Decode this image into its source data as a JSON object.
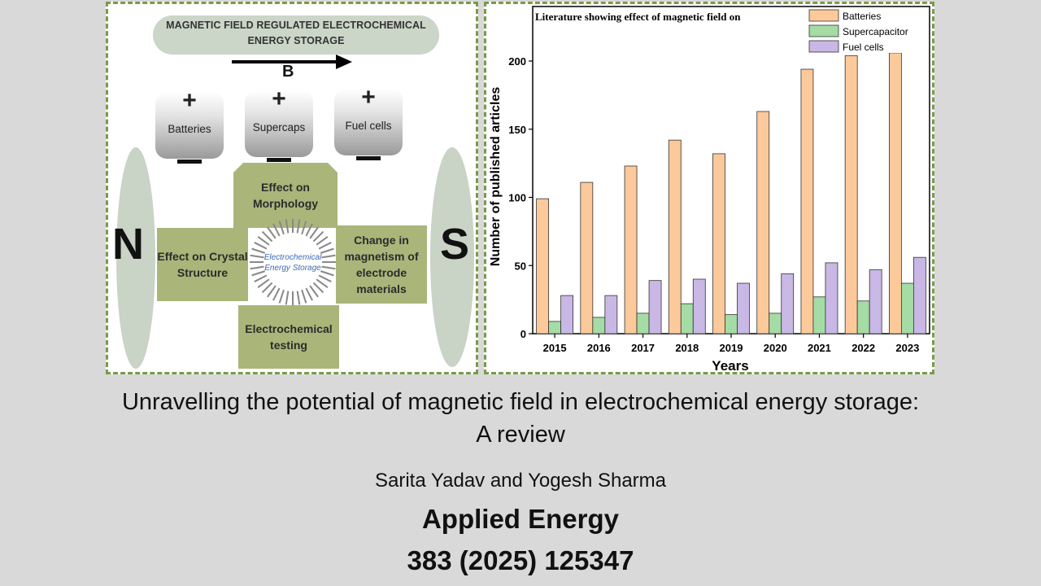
{
  "diagram": {
    "banner": "MAGNETIC FIELD REGULATED ELECTROCHEMICAL ENERGY STORAGE",
    "field_label": "B",
    "plus": "+",
    "cells": [
      "Batteries",
      "Supercaps",
      "Fuel cells"
    ],
    "north": "N",
    "south": "S",
    "effects": {
      "morphology": "Effect on Morphology",
      "crystal": "Effect on Crystal Structure",
      "magnetism": "Change in magnetism of electrode materials",
      "testing": "Electrochemical testing"
    },
    "center": "Electrochemical Energy Storage"
  },
  "chart_data": {
    "type": "bar",
    "title": "Literature showing effect of magnetic field on",
    "xlabel": "Years",
    "ylabel": "Number of published articles",
    "categories": [
      "2015",
      "2016",
      "2017",
      "2018",
      "2019",
      "2020",
      "2021",
      "2022",
      "2023"
    ],
    "ylim": [
      0,
      240
    ],
    "yticks": [
      0,
      50,
      100,
      150,
      200
    ],
    "legend_position": "top-right",
    "series": [
      {
        "name": "Batteries",
        "color": "#fcc99b",
        "values": [
          99,
          111,
          123,
          142,
          132,
          163,
          194,
          204,
          206
        ]
      },
      {
        "name": "Supercapacitor",
        "color": "#a5dba5",
        "values": [
          9,
          12,
          15,
          22,
          14,
          15,
          27,
          24,
          37
        ]
      },
      {
        "name": "Fuel cells",
        "color": "#c9b8e6",
        "values": [
          28,
          28,
          39,
          40,
          37,
          44,
          52,
          47,
          56
        ]
      }
    ]
  },
  "caption": {
    "title": "Unravelling the potential of magnetic field in electrochemical energy storage: A review",
    "authors": "Sarita Yadav and Yogesh Sharma",
    "journal": "Applied Energy",
    "citation": "383 (2025) 125347"
  }
}
